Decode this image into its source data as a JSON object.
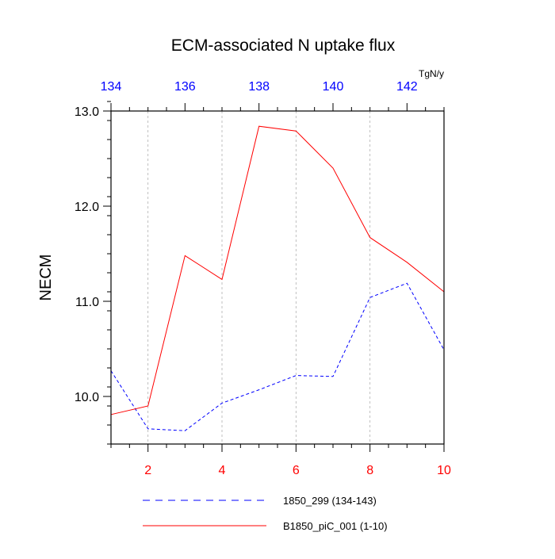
{
  "chart_data": {
    "type": "line",
    "title": "ECM-associated N uptake flux",
    "ylabel": "NECM",
    "top_axis_unit": "TgN/y",
    "xlim": [
      1,
      10
    ],
    "top_xlim": [
      134,
      143
    ],
    "ylim": [
      9.5,
      13.0
    ],
    "grid": "vertical dashed at bottom major ticks",
    "bottom_ticks": [
      "2",
      "4",
      "6",
      "8",
      "10"
    ],
    "top_ticks": [
      "134",
      "136",
      "138",
      "140",
      "142"
    ],
    "y_ticks": [
      "10.0",
      "11.0",
      "12.0",
      "13.0"
    ],
    "series": [
      {
        "name": "1850_299 (134-143)",
        "axis": "top",
        "style": "dashed",
        "color": "#0000ff",
        "x": [
          134,
          135,
          136,
          137,
          138,
          139,
          140,
          141,
          142,
          143
        ],
        "values": [
          10.27,
          9.66,
          9.64,
          9.93,
          10.07,
          10.22,
          10.21,
          11.04,
          11.19,
          10.49
        ]
      },
      {
        "name": "B1850_piC_001 (1-10)",
        "axis": "bottom",
        "style": "solid",
        "color": "#ff0000",
        "x": [
          1,
          2,
          3,
          4,
          5,
          6,
          7,
          8,
          9,
          10
        ],
        "values": [
          9.81,
          9.9,
          11.48,
          11.23,
          12.84,
          12.79,
          12.4,
          11.67,
          11.41,
          11.1
        ]
      }
    ],
    "legend": "bottom"
  }
}
